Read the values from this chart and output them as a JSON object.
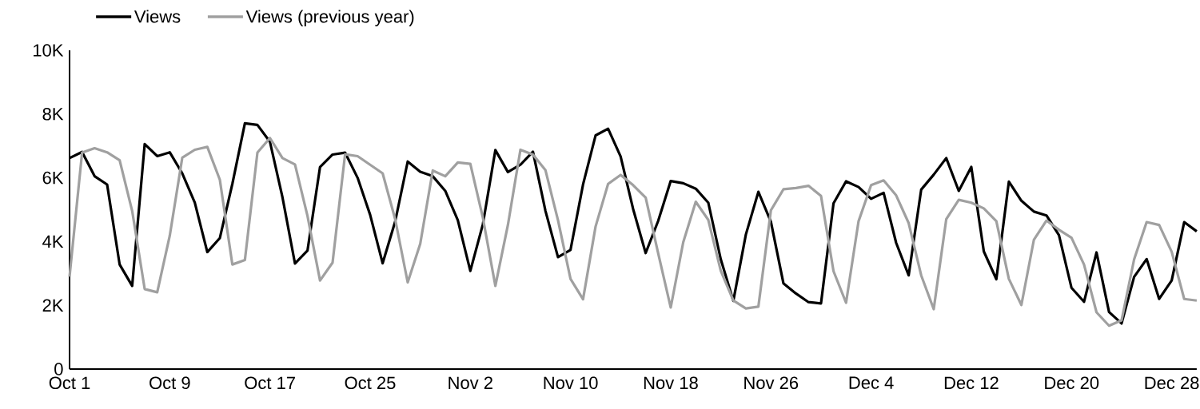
{
  "chart_data": {
    "type": "line",
    "categories": [
      "Oct 1",
      null,
      null,
      null,
      null,
      null,
      null,
      null,
      "Oct 9",
      null,
      null,
      null,
      null,
      null,
      null,
      null,
      "Oct 17",
      null,
      null,
      null,
      null,
      null,
      null,
      null,
      "Oct 25",
      null,
      null,
      null,
      null,
      null,
      null,
      null,
      "Nov 2",
      null,
      null,
      null,
      null,
      null,
      null,
      null,
      "Nov 10",
      null,
      null,
      null,
      null,
      null,
      null,
      null,
      "Nov 18",
      null,
      null,
      null,
      null,
      null,
      null,
      null,
      "Nov 26",
      null,
      null,
      null,
      null,
      null,
      null,
      null,
      "Dec 4",
      null,
      null,
      null,
      null,
      null,
      null,
      null,
      "Dec 12",
      null,
      null,
      null,
      null,
      null,
      null,
      null,
      "Dec 20",
      null,
      null,
      null,
      null,
      null,
      null,
      null,
      "Dec 28",
      null,
      null
    ],
    "ylim": [
      0,
      10000
    ],
    "yticks": [
      0,
      {
        "value": 2000,
        "label": "2K"
      },
      {
        "value": 4000,
        "label": "4K"
      },
      {
        "value": 6000,
        "label": "6K"
      },
      {
        "value": 8000,
        "label": "8K"
      },
      {
        "value": 10000,
        "label": "10K"
      }
    ],
    "legend": "top left",
    "series": [
      {
        "name": "Views",
        "color": "#000000",
        "values": [
          6620,
          6810,
          6050,
          5790,
          3280,
          2610,
          7060,
          6680,
          6800,
          6140,
          5220,
          3670,
          4110,
          5810,
          7710,
          7660,
          7130,
          5390,
          3310,
          3720,
          6340,
          6730,
          6790,
          6000,
          4840,
          3320,
          4630,
          6510,
          6190,
          6050,
          5590,
          4670,
          3080,
          4540,
          6870,
          6180,
          6410,
          6820,
          4960,
          3510,
          3740,
          5790,
          7330,
          7540,
          6670,
          5020,
          3640,
          4650,
          5900,
          5830,
          5660,
          5220,
          3440,
          2140,
          4220,
          5560,
          4620,
          2690,
          2370,
          2100,
          2060,
          5200,
          5890,
          5710,
          5340,
          5530,
          3960,
          2940,
          5630,
          6100,
          6620,
          5590,
          6340,
          3690,
          2820,
          5880,
          5280,
          4940,
          4820,
          4200,
          2550,
          2110,
          3660,
          1790,
          1430,
          2890,
          3450,
          2200,
          2780,
          4610,
          4320
        ]
      },
      {
        "name": "Views (previous year)",
        "color": "#a0a0a0",
        "values": [
          2900,
          6790,
          6930,
          6800,
          6550,
          4960,
          2510,
          2410,
          4180,
          6630,
          6880,
          6970,
          5940,
          3280,
          3420,
          6790,
          7250,
          6620,
          6420,
          4800,
          2780,
          3340,
          6740,
          6680,
          6410,
          6140,
          4700,
          2720,
          3930,
          6230,
          6050,
          6480,
          6440,
          4750,
          2610,
          4520,
          6880,
          6730,
          6240,
          4670,
          2830,
          2190,
          4470,
          5810,
          6090,
          5770,
          5380,
          3630,
          1930,
          3980,
          5250,
          4680,
          3080,
          2150,
          1900,
          1960,
          4980,
          5640,
          5680,
          5750,
          5430,
          3070,
          2080,
          4640,
          5770,
          5920,
          5450,
          4580,
          2940,
          1880,
          4700,
          5310,
          5220,
          5040,
          4640,
          2830,
          2010,
          4060,
          4660,
          4370,
          4120,
          3280,
          1780,
          1360,
          1530,
          3440,
          4610,
          4520,
          3680,
          2200,
          2150
        ]
      }
    ]
  }
}
